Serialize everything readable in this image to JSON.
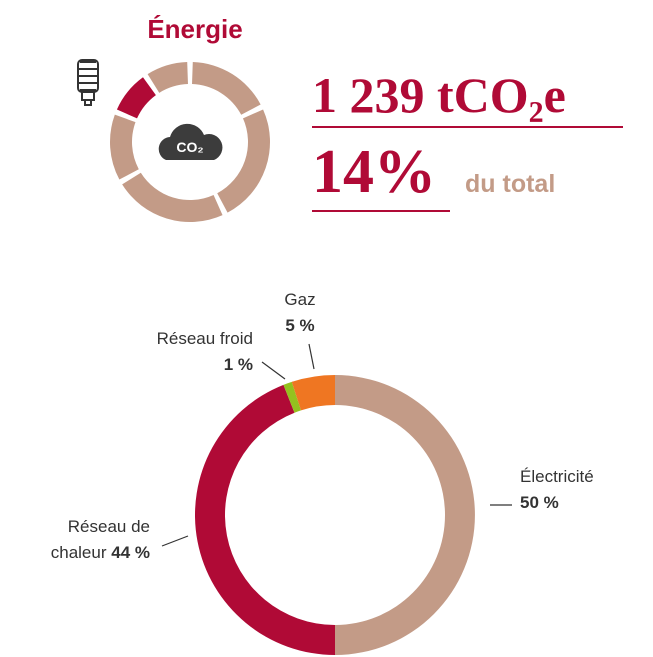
{
  "header": {
    "title": "Énergie",
    "icon_text": "CO₂",
    "emissions": "1 239 tCO₂e",
    "share": "14%",
    "share_note": "du total"
  },
  "chart_data": {
    "type": "donut",
    "categories": [
      "Électricité",
      "Réseau de chaleur",
      "Réseau froid",
      "Gaz"
    ],
    "values": [
      50,
      44,
      1,
      5
    ],
    "value_labels": [
      "50 %",
      "44 %",
      "1 %",
      "5 %"
    ],
    "colors": [
      "#c39b87",
      "#b00a36",
      "#94c11f",
      "#ef7622"
    ]
  }
}
